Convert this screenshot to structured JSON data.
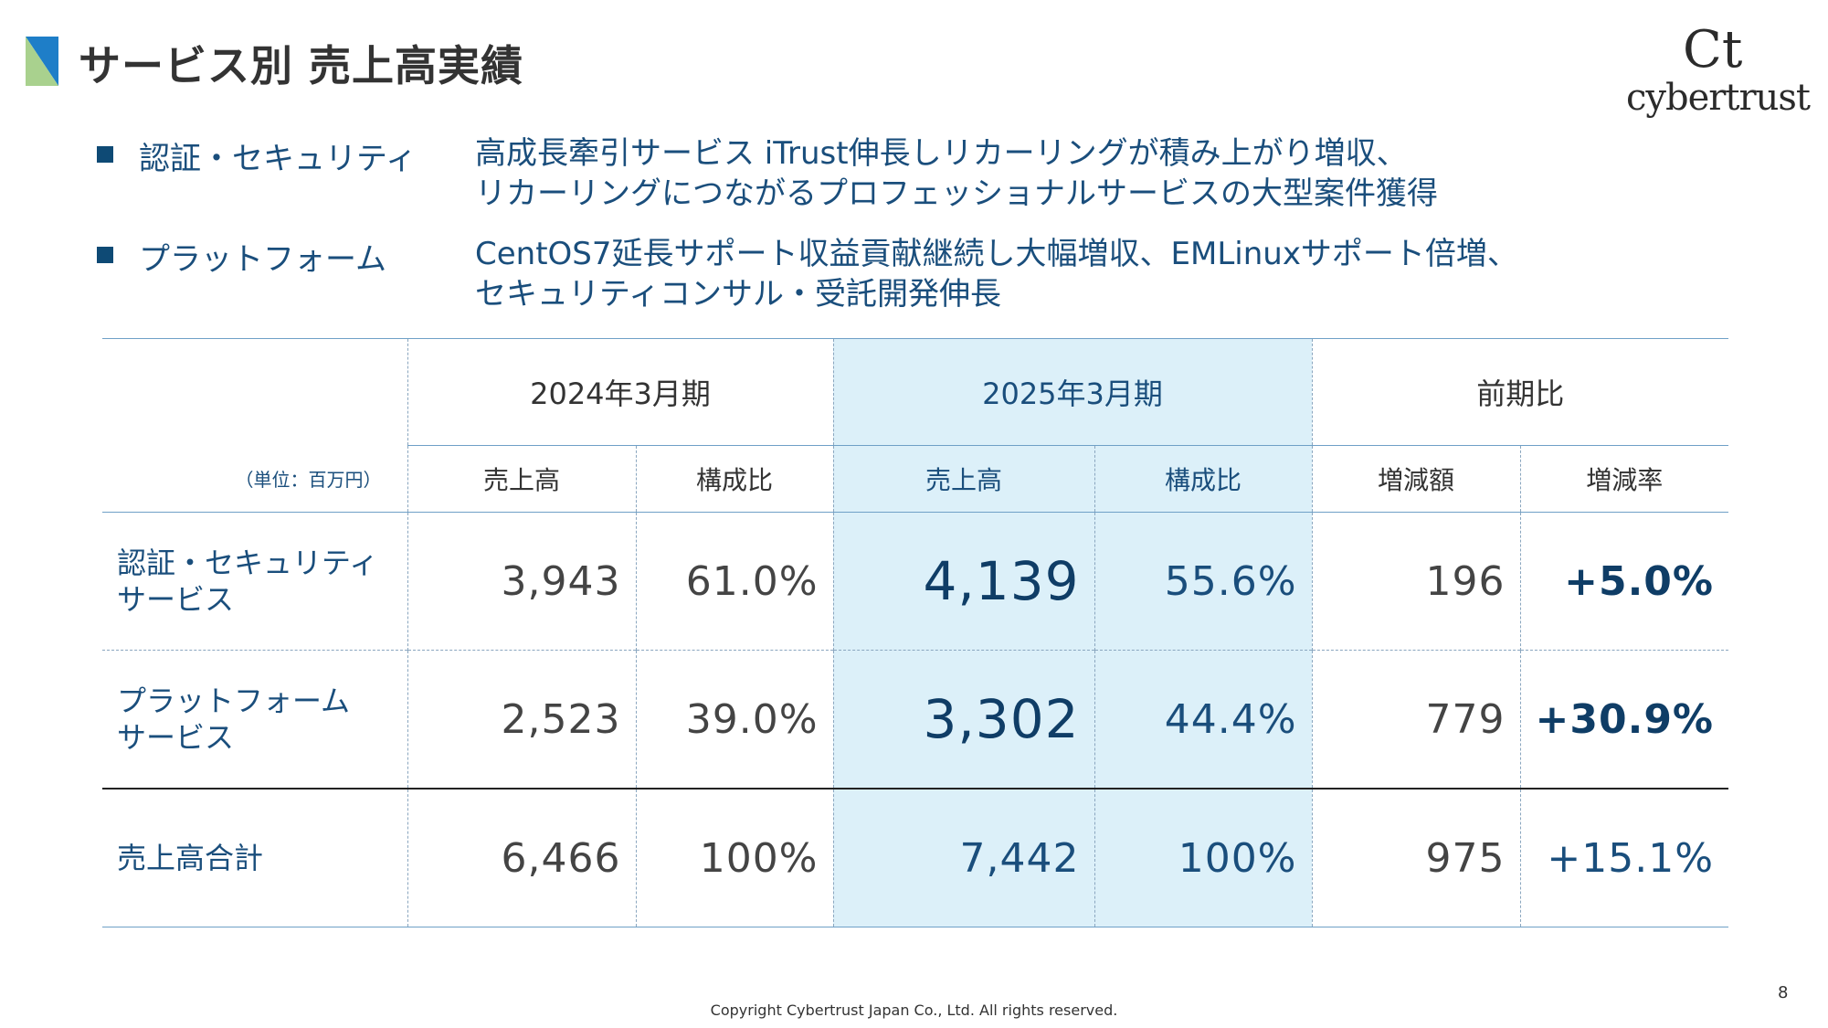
{
  "header": {
    "title": "サービス別 売上高実績",
    "logo_text": "cybertrust",
    "logo_mark": "Ct"
  },
  "bullets": [
    {
      "label": "認証・セキュリティ",
      "lines": [
        "高成長牽引サービス iTrust伸長しリカーリングが積み上がり増収、",
        "リカーリングにつながるプロフェッショナルサービスの大型案件獲得"
      ]
    },
    {
      "label": "プラットフォーム",
      "lines": [
        "CentOS7延長サポート収益貢献継続し大幅増収、EMLinuxサポート倍増、",
        "セキュリティコンサル・受託開発伸長"
      ]
    }
  ],
  "table": {
    "unit": "（単位：百万円）",
    "group_headers": [
      "2024年3月期",
      "2025年3月期",
      "前期比"
    ],
    "sub_headers": [
      "売上高",
      "構成比",
      "売上高",
      "構成比",
      "増減額",
      "増減率"
    ],
    "rows": [
      {
        "label_lines": [
          "認証・セキュリティ",
          "サービス"
        ],
        "values": [
          "3,943",
          "61.0%",
          "4,139",
          "55.6%",
          "196",
          "+5.0%"
        ]
      },
      {
        "label_lines": [
          "プラットフォーム",
          "サービス"
        ],
        "values": [
          "2,523",
          "39.0%",
          "3,302",
          "44.4%",
          "779",
          "+30.9%"
        ]
      },
      {
        "label_lines": [
          "売上高合計"
        ],
        "values": [
          "6,466",
          "100%",
          "7,442",
          "100%",
          "975",
          "+15.1%"
        ]
      }
    ]
  },
  "colors": {
    "accent_dark": "#0e4a75",
    "text_blue": "#1a4e7c",
    "highlight_bg": "#dcf0f9",
    "title_mark_blue": "#1e7ec8",
    "title_mark_green": "#a9d18e"
  },
  "footer": {
    "page_number": "8",
    "copyright": "Copyright Cybertrust Japan Co., Ltd. All rights reserved."
  }
}
